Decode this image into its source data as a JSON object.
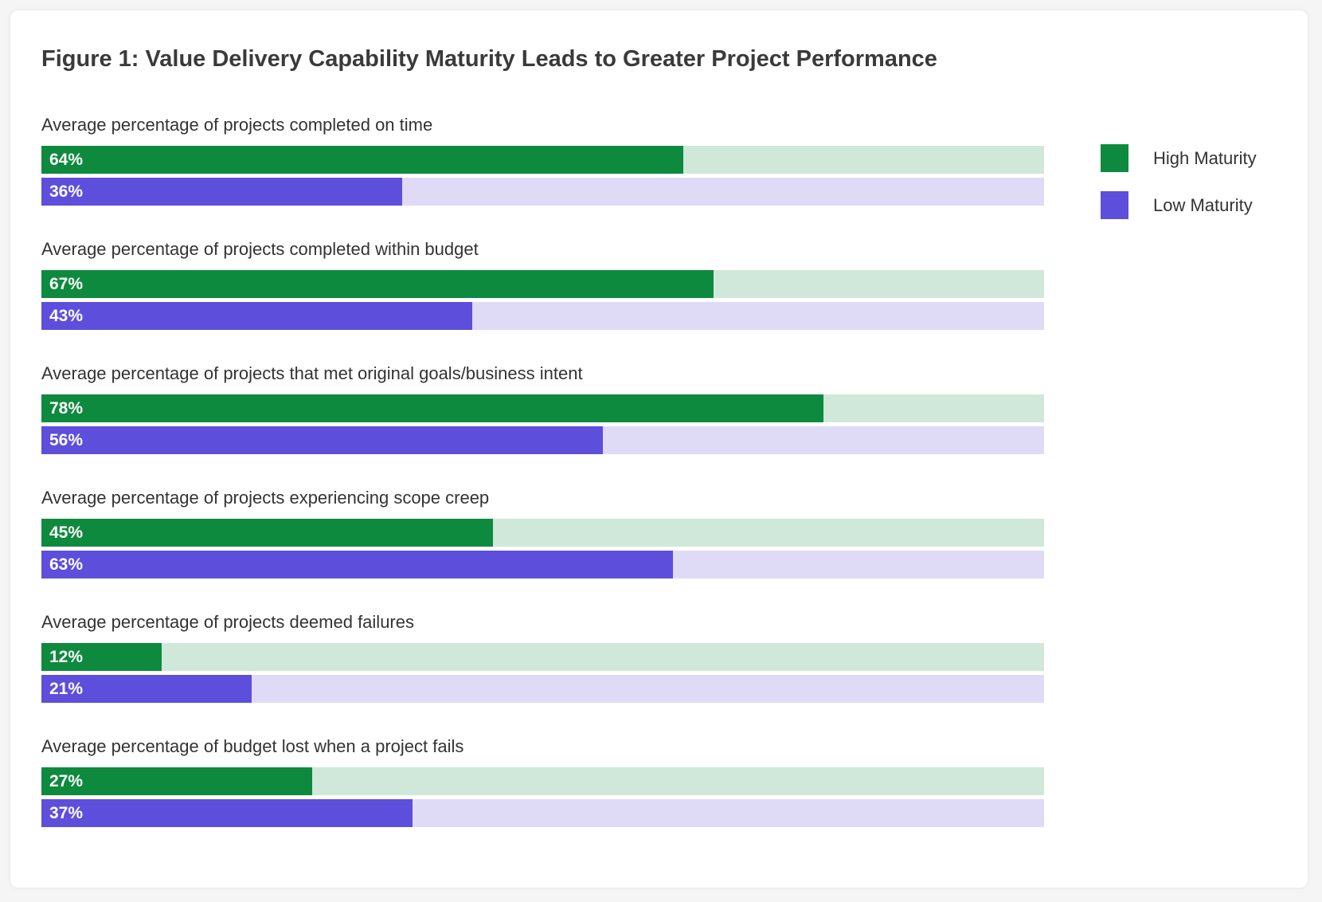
{
  "chart_data": {
    "type": "bar",
    "orientation": "horizontal",
    "title": "Figure 1: Value Delivery Capability Maturity Leads to Greater Project Performance",
    "categories": [
      "Average percentage of projects completed on time",
      "Average percentage of projects completed within budget",
      "Average percentage of projects that met original goals/business intent",
      "Average percentage of projects experiencing scope creep",
      "Average percentage of projects deemed failures",
      "Average percentage of budget lost when a project fails"
    ],
    "series": [
      {
        "name": "High Maturity",
        "values": [
          64,
          67,
          78,
          45,
          12,
          27
        ],
        "labels": [
          "64%",
          "67%",
          "78%",
          "45%",
          "12%",
          "27%"
        ],
        "color": "#0e8a3e",
        "track_color": "#d0e8d9"
      },
      {
        "name": "Low Maturity",
        "values": [
          36,
          43,
          56,
          63,
          21,
          37
        ],
        "labels": [
          "36%",
          "43%",
          "56%",
          "63%",
          "21%",
          "37%"
        ],
        "color": "#5d4fdb",
        "track_color": "#dfdbf7"
      }
    ],
    "xlim": [
      0,
      100
    ],
    "legend_position": "top-right",
    "grid": false
  }
}
